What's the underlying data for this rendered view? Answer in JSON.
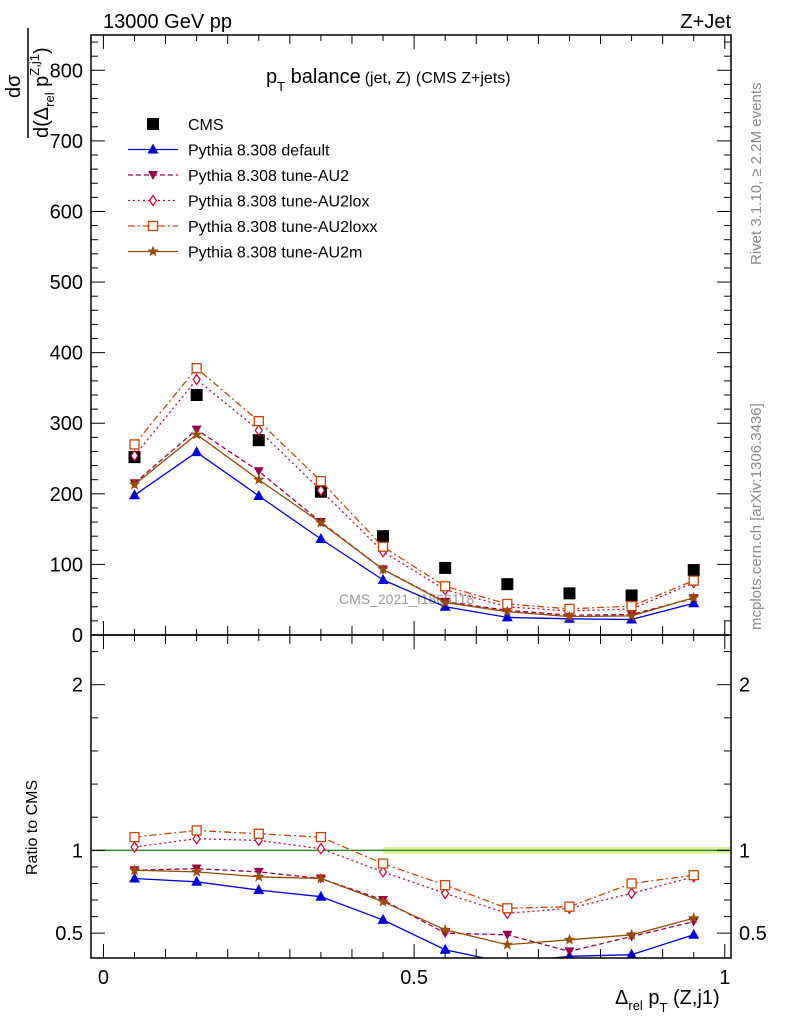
{
  "header": {
    "left": "13000 GeV pp",
    "right": "Z+Jet"
  },
  "title": {
    "main": "p",
    "main_sub": "T",
    "main_rest": " balance",
    "paren": "(jet, Z)",
    "extra": "(CMS Z+jets)"
  },
  "side_labels": {
    "rivet": "Rivet 3.1.10, ≥ 2.2M events",
    "mcplots": "mcplots.cern.ch [arXiv:1306.3436]"
  },
  "watermark": "CMS_2021_I1866118",
  "top_ylabel": {
    "num": "dσ",
    "den_d": "d(Δ",
    "den_rel": "rel",
    "den_p": " p",
    "den_sup": "Z,j1",
    "den_close": ")"
  },
  "ratio_ylabel": "Ratio to CMS",
  "xlabel": {
    "delta": "Δ",
    "rel": "rel",
    "p": " p",
    "T": "T",
    "rest": " (Z,j1)"
  },
  "colors": {
    "cms": "#000000",
    "default": "#0000dd",
    "au2": "#99004d",
    "au2lox": "#cc0033",
    "au2loxx": "#cc4400",
    "au2m": "#994c00",
    "band": "#d4f07a",
    "ref_line": "#2e8b2e"
  },
  "chart_data": [
    {
      "type": "scatter",
      "panel": "main",
      "x": [
        0.05,
        0.15,
        0.25,
        0.35,
        0.45,
        0.55,
        0.65,
        0.75,
        0.85,
        0.95
      ],
      "ylim": [
        0,
        850
      ],
      "xlim": [
        -0.02,
        1.01
      ],
      "yticks": [
        0,
        100,
        200,
        300,
        400,
        500,
        600,
        700,
        800
      ],
      "series": [
        {
          "name": "CMS",
          "key": "cms",
          "marker": "square-filled",
          "values": [
            252,
            340,
            276,
            203,
            140,
            95,
            72,
            59,
            56,
            92
          ]
        },
        {
          "name": "Pythia 8.308 default",
          "key": "default",
          "marker": "triangle-filled",
          "values": [
            198,
            259,
            197,
            136,
            78,
            40,
            25,
            23,
            22,
            45
          ]
        },
        {
          "name": "Pythia 8.308 tune-AU2",
          "key": "au2",
          "marker": "triangle-down-filled",
          "values": [
            215,
            291,
            232,
            160,
            93,
            47,
            35,
            28,
            29,
            52
          ]
        },
        {
          "name": "Pythia 8.308 tune-AU2lox",
          "key": "au2lox",
          "marker": "diamond-open",
          "values": [
            254,
            362,
            290,
            205,
            118,
            64,
            40,
            34,
            37,
            74
          ]
        },
        {
          "name": "Pythia 8.308 tune-AU2loxx",
          "key": "au2loxx",
          "marker": "square-open",
          "values": [
            270,
            378,
            303,
            218,
            125,
            69,
            44,
            37,
            41,
            77
          ]
        },
        {
          "name": "Pythia 8.308 tune-AU2m",
          "key": "au2m",
          "marker": "star",
          "values": [
            213,
            284,
            220,
            159,
            93,
            46,
            33,
            26,
            27,
            53
          ]
        }
      ]
    },
    {
      "type": "line",
      "panel": "ratio",
      "ylabel": "Ratio to CMS",
      "x": [
        0.05,
        0.15,
        0.25,
        0.35,
        0.45,
        0.55,
        0.65,
        0.75,
        0.85,
        0.95
      ],
      "ylim": [
        0.35,
        2.3
      ],
      "xlim": [
        -0.02,
        1.01
      ],
      "yticks": [
        0.5,
        1,
        2
      ],
      "ytick_labels": [
        "0.5",
        "1",
        "2"
      ],
      "xticks": [
        0,
        0.5,
        1
      ],
      "xtick_labels": [
        "0",
        "0.5",
        "1"
      ],
      "series": [
        {
          "key": "default",
          "values": [
            0.83,
            0.81,
            0.76,
            0.72,
            0.58,
            0.4,
            0.32,
            0.36,
            0.37,
            0.49
          ]
        },
        {
          "key": "au2",
          "values": [
            0.88,
            0.89,
            0.87,
            0.83,
            0.7,
            0.5,
            0.49,
            0.39,
            0.48,
            0.57
          ]
        },
        {
          "key": "au2lox",
          "values": [
            1.02,
            1.07,
            1.06,
            1.01,
            0.87,
            0.74,
            0.62,
            0.65,
            0.74,
            0.84
          ]
        },
        {
          "key": "au2loxx",
          "values": [
            1.08,
            1.12,
            1.1,
            1.08,
            0.92,
            0.79,
            0.65,
            0.66,
            0.8,
            0.85
          ]
        },
        {
          "key": "au2m",
          "values": [
            0.88,
            0.87,
            0.84,
            0.83,
            0.69,
            0.52,
            0.43,
            0.46,
            0.49,
            0.59
          ]
        }
      ]
    }
  ]
}
